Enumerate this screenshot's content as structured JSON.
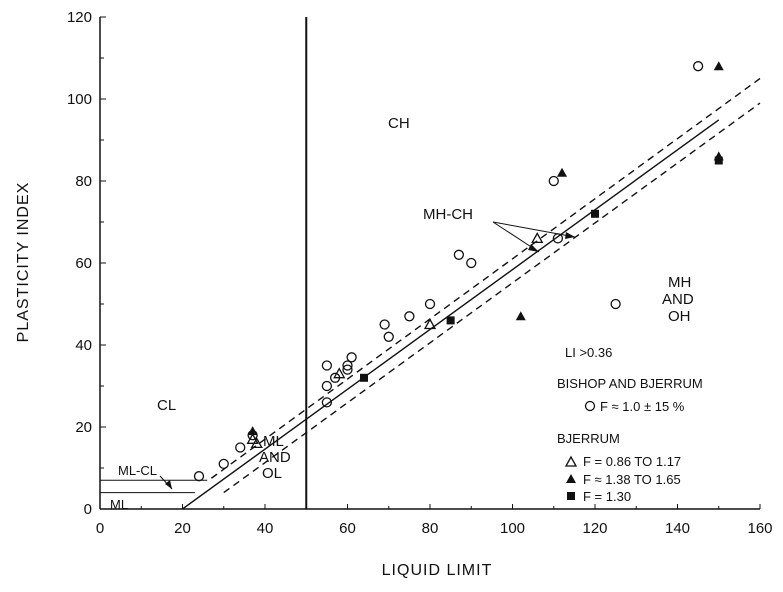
{
  "chart_data": {
    "type": "scatter",
    "xlabel": "LIQUID LIMIT",
    "ylabel": "PLASTICITY INDEX",
    "xlim": [
      0,
      160
    ],
    "ylim": [
      0,
      120
    ],
    "x_ticks": [
      "0",
      "20",
      "40",
      "60",
      "80",
      "100",
      "120",
      "140",
      "160"
    ],
    "y_ticks": [
      "0",
      "20",
      "40",
      "60",
      "80",
      "100",
      "120"
    ],
    "grid": false,
    "legend_placement": "lower-right",
    "region_labels": {
      "ch": "CH",
      "cl": "CL",
      "mh": "MH",
      "and1": "AND",
      "oh": "OH",
      "ml": "ML",
      "and2": "AND",
      "ol": "OL",
      "ml_cl": "ML-CL",
      "ml_small": "ML",
      "mh_ch": "MH-CH"
    },
    "annotations": {
      "li": "LI >0.36",
      "bishop": "BISHOP AND BJERRUM",
      "bishop_entry": "F ≈ 1.0 ± 15 %",
      "bjerrum": "BJERRUM"
    },
    "series": [
      {
        "name": "F ≈ 1.0 ± 15 %",
        "marker": "circle-open",
        "points": [
          [
            24,
            8
          ],
          [
            30,
            11
          ],
          [
            34,
            15
          ],
          [
            37,
            18
          ],
          [
            55,
            35
          ],
          [
            55,
            30
          ],
          [
            55,
            26
          ],
          [
            57,
            32
          ],
          [
            60,
            34
          ],
          [
            60,
            35
          ],
          [
            61,
            37
          ],
          [
            69,
            45
          ],
          [
            70,
            42
          ],
          [
            75,
            47
          ],
          [
            80,
            50
          ],
          [
            87,
            62
          ],
          [
            90,
            60
          ],
          [
            110,
            80
          ],
          [
            111,
            66
          ],
          [
            125,
            50
          ],
          [
            145,
            108
          ]
        ]
      },
      {
        "name": "F = 0.86 TO 1.17",
        "marker": "triangle-open",
        "points": [
          [
            37,
            17
          ],
          [
            38,
            16
          ],
          [
            58,
            33
          ],
          [
            80,
            45
          ],
          [
            106,
            66
          ]
        ]
      },
      {
        "name": "F ≈ 1.38 TO 1.65",
        "marker": "triangle-filled",
        "points": [
          [
            37,
            19
          ],
          [
            102,
            47
          ],
          [
            112,
            82
          ],
          [
            150,
            108
          ],
          [
            150,
            86
          ]
        ]
      },
      {
        "name": "F = 1.30",
        "marker": "square-filled",
        "points": [
          [
            64,
            32
          ],
          [
            85,
            46
          ],
          [
            120,
            72
          ],
          [
            150,
            85
          ]
        ]
      }
    ],
    "lines": {
      "a_line": [
        [
          20,
          0
        ],
        [
          150,
          94.9
        ]
      ],
      "a_line_upper_dashed": [
        [
          27,
          7.5
        ],
        [
          160,
          105
        ]
      ],
      "a_line_lower_dashed": [
        [
          30,
          4
        ],
        [
          160,
          99
        ]
      ],
      "ll50": [
        [
          50,
          0
        ],
        [
          50,
          120
        ]
      ],
      "ml_cl_upper": [
        [
          0,
          7
        ],
        [
          26,
          7
        ]
      ],
      "ml_cl_lower": [
        [
          0,
          4
        ],
        [
          23,
          4
        ]
      ]
    },
    "colors": {
      "ink": "#111111",
      "background": "#ffffff"
    }
  }
}
